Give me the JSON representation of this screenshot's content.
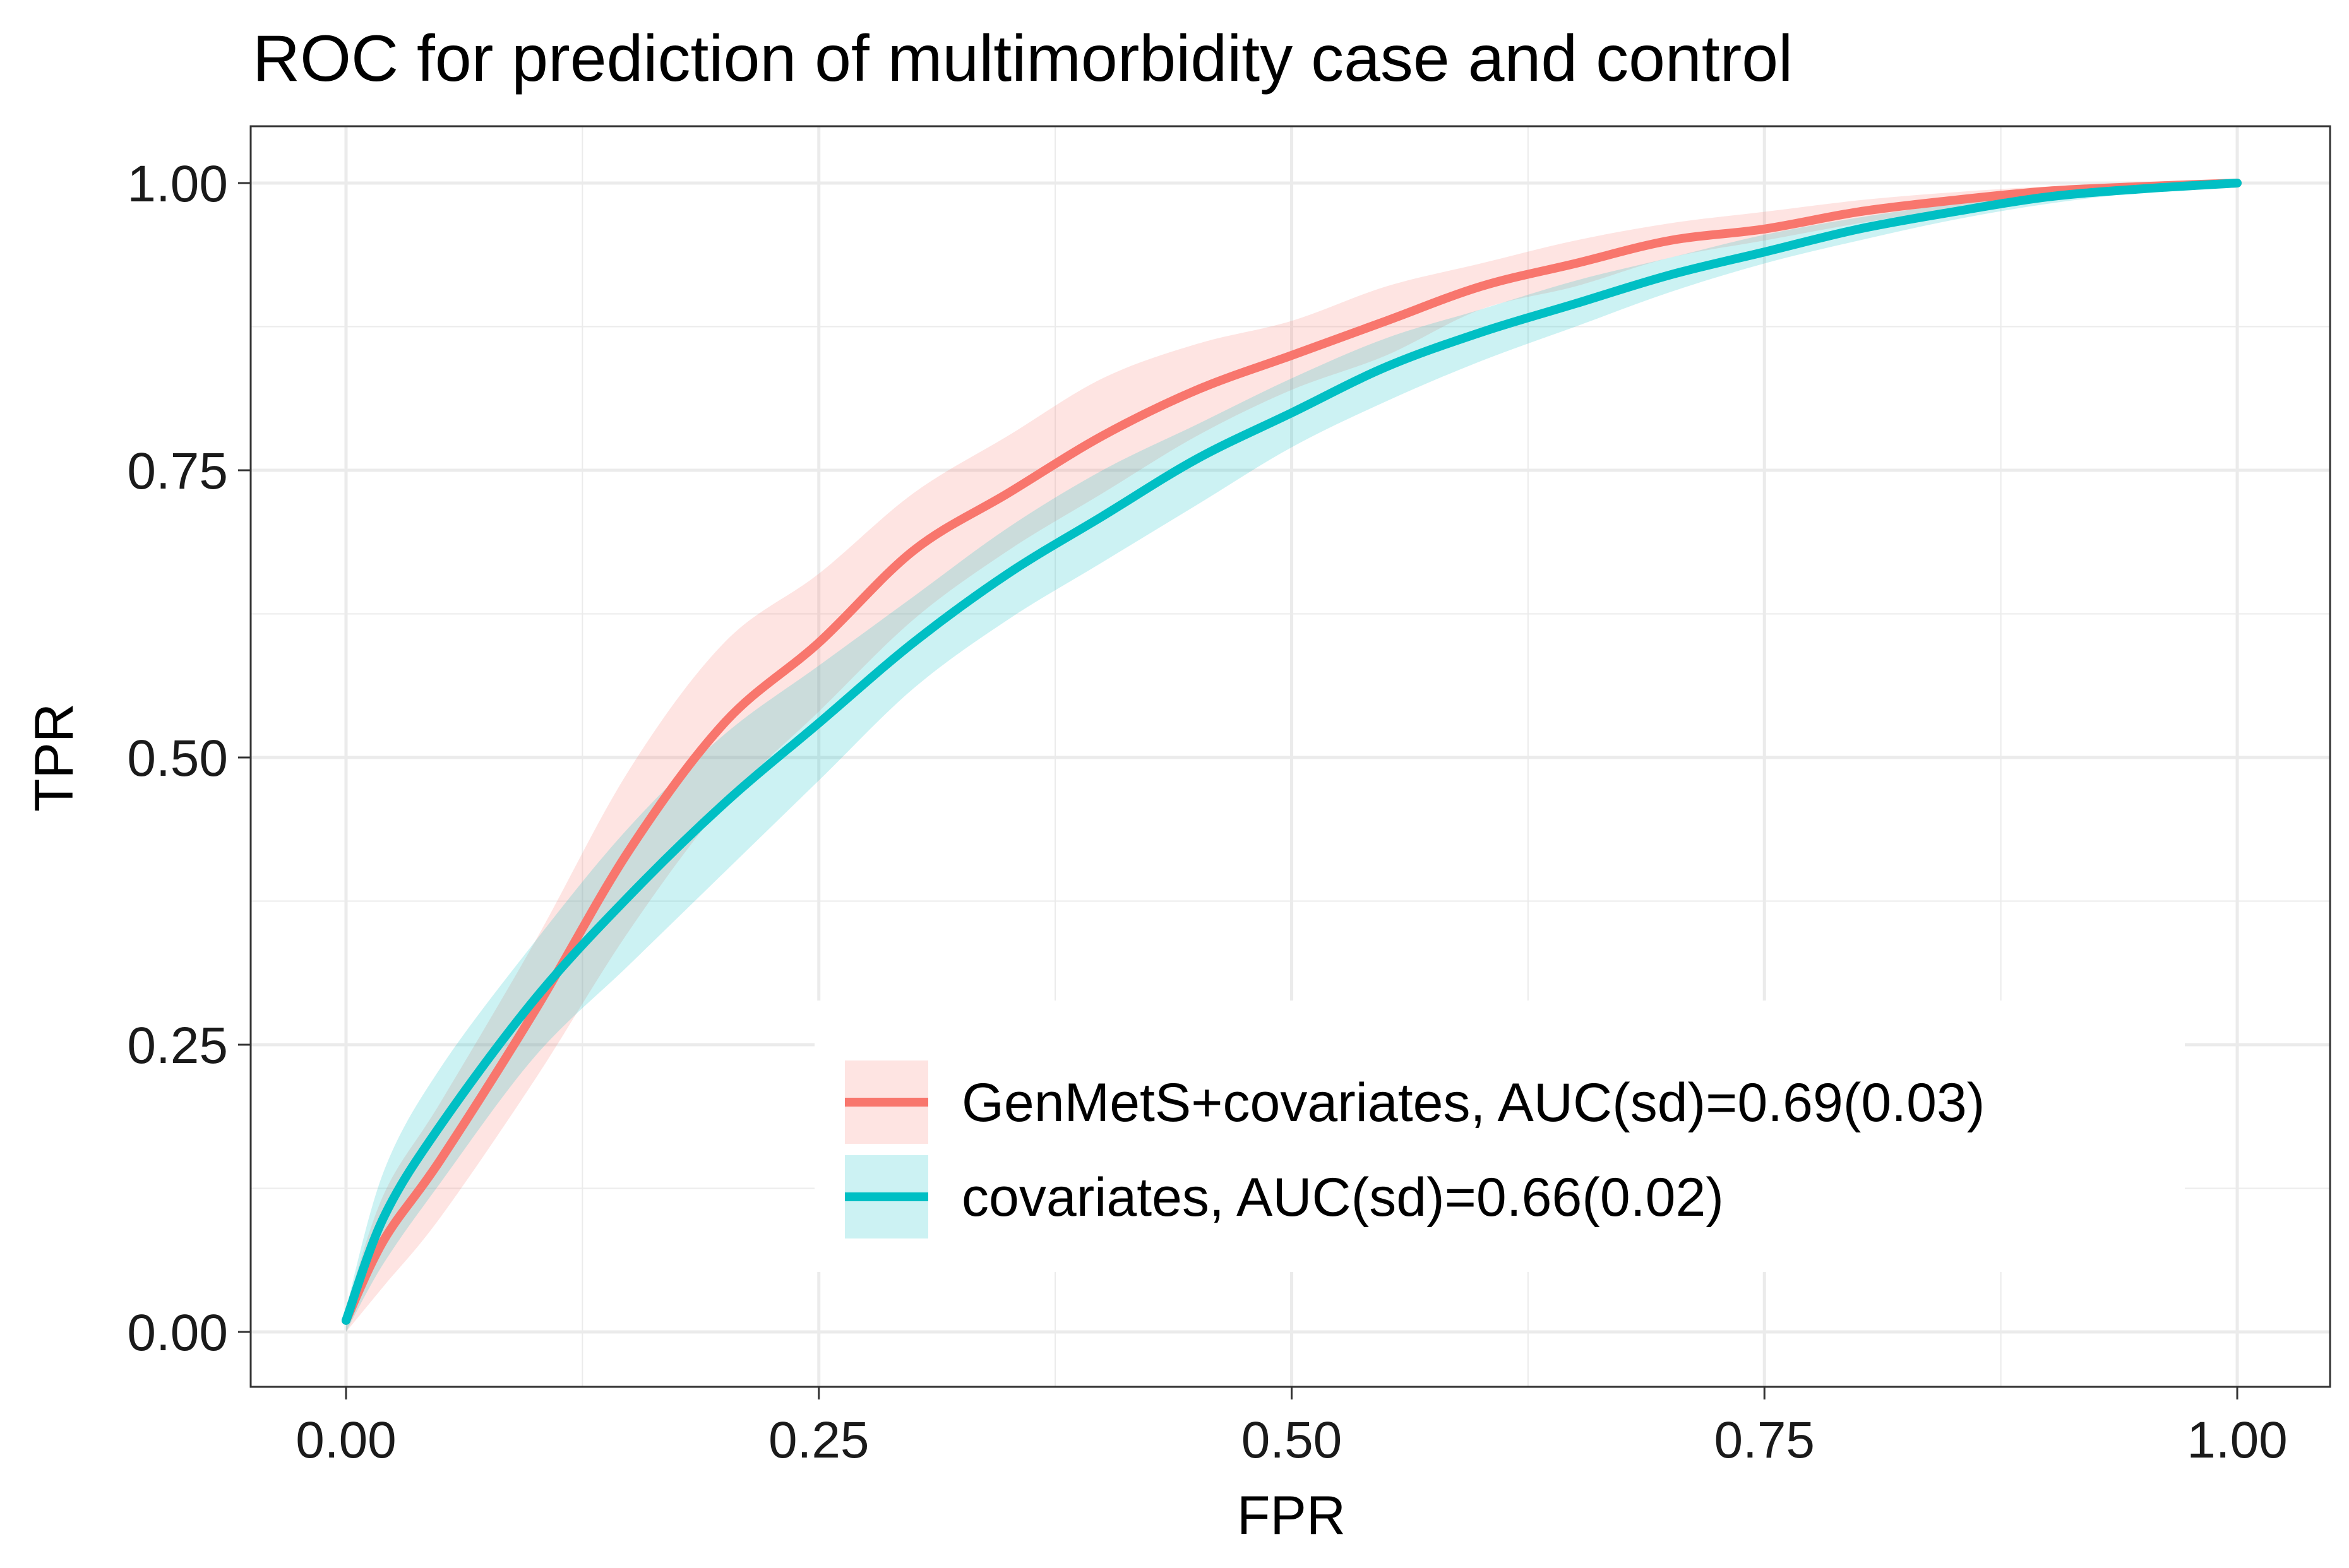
{
  "chart_data": {
    "type": "line",
    "title": "ROC for prediction of multimorbidity case and control",
    "xlabel": "FPR",
    "ylabel": "TPR",
    "xlim": [
      0,
      1
    ],
    "ylim": [
      0,
      1
    ],
    "x_ticks": [
      "0.00",
      "0.25",
      "0.50",
      "0.75",
      "1.00"
    ],
    "y_ticks": [
      "0.00",
      "0.25",
      "0.50",
      "0.75",
      "1.00"
    ],
    "grid": true,
    "legend_position": "bottom-right",
    "series": [
      {
        "name": "GenMetS+covariates, AUC(sd)=0.69(0.03)",
        "color": "#F8766D",
        "x": [
          0.0,
          0.02,
          0.05,
          0.1,
          0.15,
          0.2,
          0.25,
          0.3,
          0.35,
          0.4,
          0.45,
          0.5,
          0.55,
          0.6,
          0.65,
          0.7,
          0.75,
          0.8,
          0.85,
          0.9,
          0.95,
          1.0
        ],
        "y": [
          0.01,
          0.08,
          0.15,
          0.28,
          0.42,
          0.53,
          0.6,
          0.68,
          0.73,
          0.78,
          0.82,
          0.85,
          0.88,
          0.91,
          0.93,
          0.95,
          0.96,
          0.975,
          0.985,
          0.993,
          0.997,
          1.0
        ],
        "lower": [
          0.0,
          0.04,
          0.1,
          0.22,
          0.35,
          0.46,
          0.54,
          0.62,
          0.68,
          0.73,
          0.78,
          0.82,
          0.85,
          0.89,
          0.91,
          0.935,
          0.95,
          0.965,
          0.978,
          0.988,
          0.994,
          1.0
        ],
        "upper": [
          0.02,
          0.12,
          0.2,
          0.34,
          0.49,
          0.6,
          0.66,
          0.73,
          0.78,
          0.83,
          0.86,
          0.88,
          0.91,
          0.93,
          0.95,
          0.965,
          0.975,
          0.985,
          0.992,
          0.997,
          0.999,
          1.0
        ]
      },
      {
        "name": "covariates, AUC(sd)=0.66(0.02)",
        "color": "#00BFC4",
        "x": [
          0.0,
          0.02,
          0.05,
          0.1,
          0.15,
          0.2,
          0.25,
          0.3,
          0.35,
          0.4,
          0.45,
          0.5,
          0.55,
          0.6,
          0.65,
          0.7,
          0.75,
          0.8,
          0.85,
          0.9,
          0.95,
          1.0
        ],
        "y": [
          0.01,
          0.1,
          0.18,
          0.29,
          0.38,
          0.46,
          0.53,
          0.6,
          0.66,
          0.71,
          0.76,
          0.8,
          0.84,
          0.87,
          0.895,
          0.92,
          0.94,
          0.96,
          0.975,
          0.988,
          0.995,
          1.0
        ],
        "lower": [
          0.0,
          0.06,
          0.13,
          0.24,
          0.32,
          0.4,
          0.48,
          0.56,
          0.62,
          0.67,
          0.72,
          0.77,
          0.81,
          0.845,
          0.875,
          0.905,
          0.93,
          0.95,
          0.968,
          0.982,
          0.992,
          1.0
        ],
        "upper": [
          0.02,
          0.14,
          0.23,
          0.34,
          0.44,
          0.52,
          0.58,
          0.64,
          0.7,
          0.75,
          0.79,
          0.83,
          0.865,
          0.89,
          0.915,
          0.935,
          0.955,
          0.97,
          0.982,
          0.992,
          0.998,
          1.0
        ]
      }
    ]
  }
}
